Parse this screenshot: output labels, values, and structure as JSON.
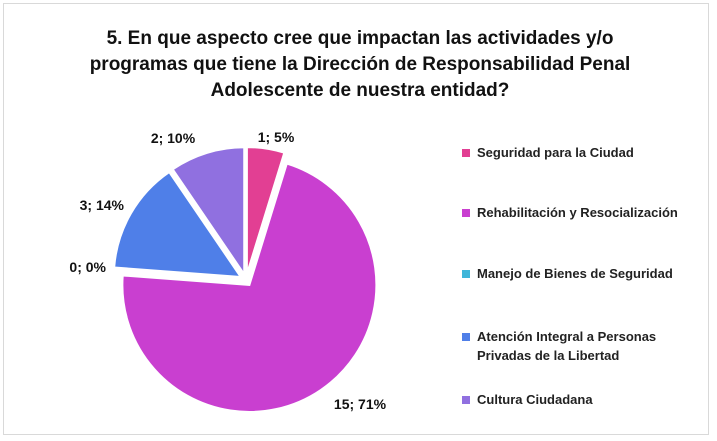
{
  "chart_data": {
    "type": "pie",
    "title_lines": [
      "5. En que aspecto cree que impactan las actividades y/o",
      "programas que tiene la Dirección de Responsabilidad Penal",
      "Adolescente de nuestra entidad?"
    ],
    "slices": [
      {
        "name": "Seguridad para la Ciudad",
        "value": 1,
        "percent": 5,
        "label": "1; 5%",
        "color": "#e23f93",
        "legend_lines": [
          "Seguridad para la Ciudad"
        ]
      },
      {
        "name": "Rehabilitación y Resocialización",
        "value": 15,
        "percent": 71,
        "label": "15; 71%",
        "color": "#c93fd0",
        "legend_lines": [
          "Rehabilitación y Resocialización"
        ]
      },
      {
        "name": "Manejo de Bienes de Seguridad",
        "value": 0,
        "percent": 0,
        "label": "0; 0%",
        "color": "#3fb6d9",
        "legend_lines": [
          "Manejo de Bienes de Seguridad"
        ]
      },
      {
        "name": "Atención Integral a Personas Privadas de la Libertad",
        "value": 3,
        "percent": 14,
        "label": "3; 14%",
        "color": "#4f7fe8",
        "legend_lines": [
          "Atención Integral a Personas",
          "Privadas de la Libertad"
        ]
      },
      {
        "name": "Cultura Ciudadana",
        "value": 2,
        "percent": 10,
        "label": "2; 10%",
        "color": "#9070e0",
        "legend_lines": [
          "Cultura Ciudadana"
        ]
      }
    ],
    "legend_position": "right",
    "exploded": true
  }
}
